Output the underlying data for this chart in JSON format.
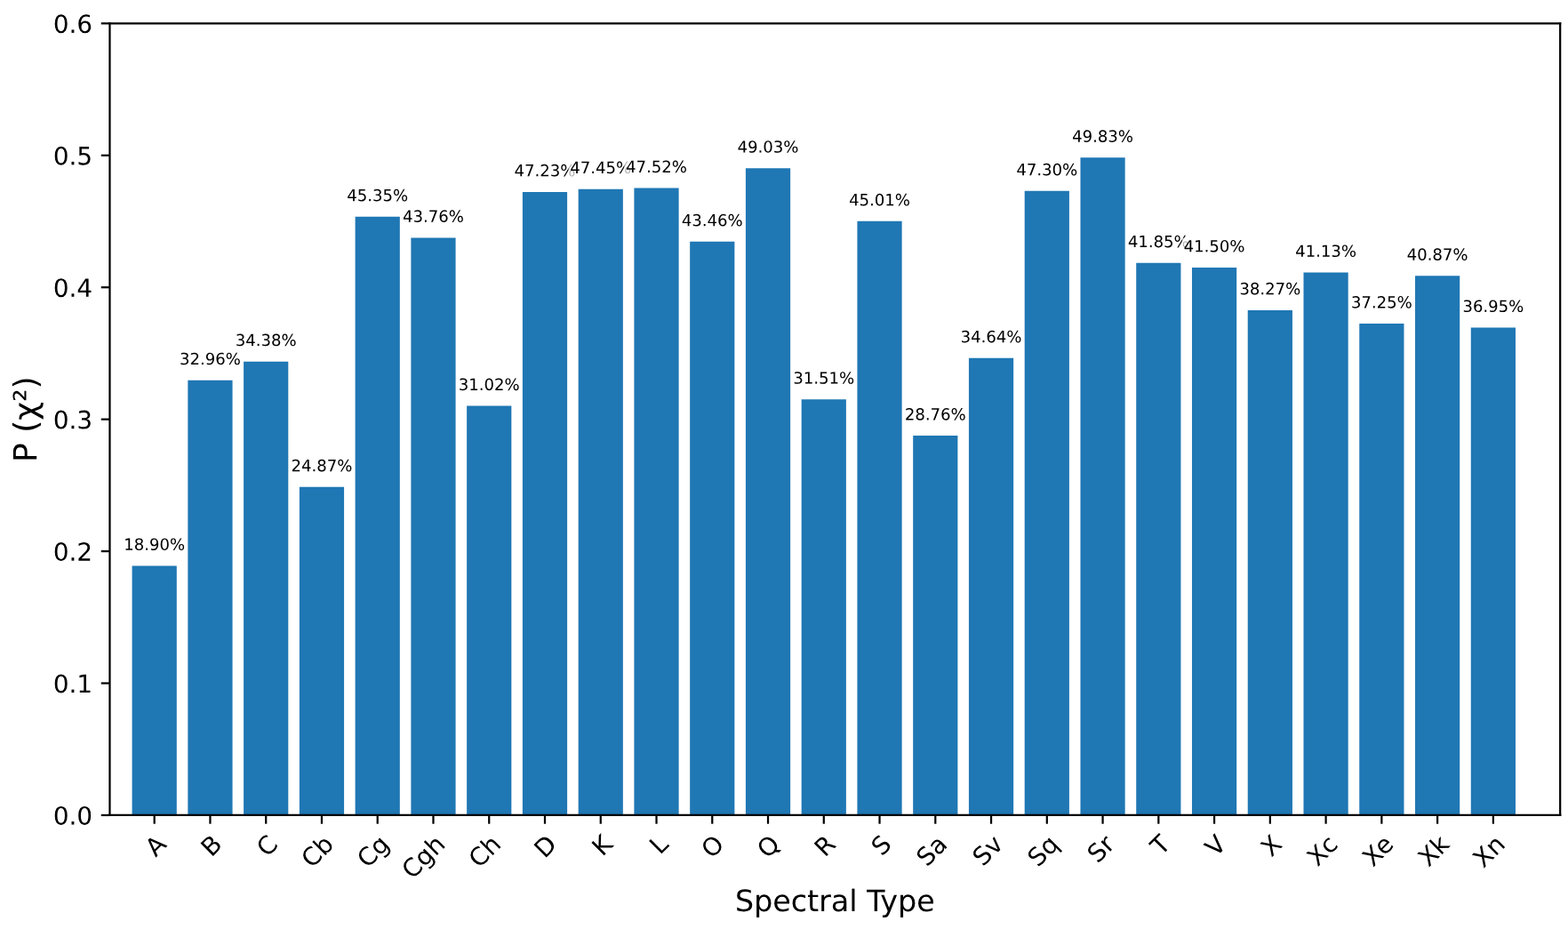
{
  "chart_data": {
    "type": "bar",
    "xlabel": "Spectral Type",
    "ylabel": "P (χ²)",
    "categories": [
      "A",
      "B",
      "C",
      "Cb",
      "Cg",
      "Cgh",
      "Ch",
      "D",
      "K",
      "L",
      "O",
      "Q",
      "R",
      "S",
      "Sa",
      "Sv",
      "Sq",
      "Sr",
      "T",
      "V",
      "X",
      "Xc",
      "Xe",
      "Xk",
      "Xn"
    ],
    "values": [
      0.189,
      0.3296,
      0.3438,
      0.2487,
      0.4535,
      0.4376,
      0.3102,
      0.4723,
      0.4745,
      0.4752,
      0.4346,
      0.4903,
      0.3151,
      0.4501,
      0.2876,
      0.3464,
      0.473,
      0.4983,
      0.4185,
      0.415,
      0.3827,
      0.4113,
      0.3725,
      0.4087,
      0.3695
    ],
    "value_labels": [
      "18.90%",
      "32.96%",
      "34.38%",
      "24.87%",
      "45.35%",
      "43.76%",
      "31.02%",
      "47.23%",
      "47.45%",
      "47.52%",
      "43.46%",
      "49.03%",
      "31.51%",
      "45.01%",
      "28.76%",
      "34.64%",
      "47.30%",
      "49.83%",
      "41.85%",
      "41.50%",
      "38.27%",
      "41.13%",
      "37.25%",
      "40.87%",
      "36.95%"
    ],
    "color": "#1f77b4",
    "ylim": [
      0,
      0.6
    ],
    "yticks": [
      {
        "value": 0,
        "label": "0.0"
      },
      {
        "value": 0.1,
        "label": "0.1"
      },
      {
        "value": 0.2,
        "label": "0.2"
      },
      {
        "value": 0.3,
        "label": "0.3"
      },
      {
        "value": 0.4,
        "label": "0.4"
      },
      {
        "value": 0.5,
        "label": "0.5"
      },
      {
        "value": 0.6,
        "label": "0.6"
      }
    ],
    "grid": false,
    "legend": false
  }
}
